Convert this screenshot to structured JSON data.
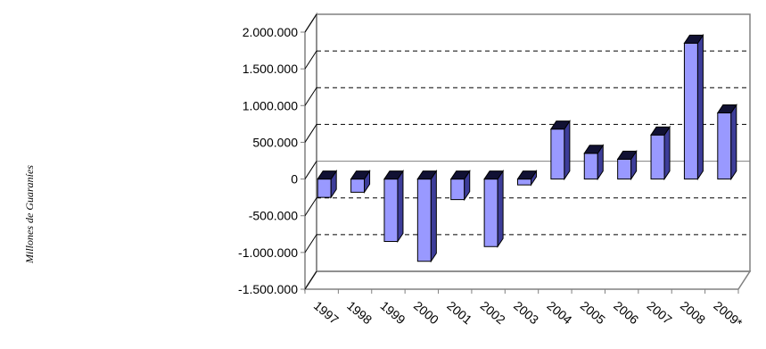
{
  "chart_data": {
    "type": "bar",
    "title": "",
    "xlabel": "",
    "ylabel": "Millones de Guaraníes",
    "ylim": [
      -1500000,
      2000000
    ],
    "ytick_values": [
      2000000,
      1500000,
      1000000,
      500000,
      0,
      -500000,
      -1000000,
      -1500000
    ],
    "ytick_labels": [
      "2.000.000",
      "1.500.000",
      "1.000.000",
      "500.000",
      "0",
      "-500.000",
      "-1.000.000",
      "-1.500.000"
    ],
    "categories": [
      "1997",
      "1998",
      "1999",
      "2000",
      "2001",
      "2002",
      "2003",
      "2004",
      "2005",
      "2006",
      "2007",
      "2008",
      "2009*"
    ],
    "values": [
      -250000,
      -180000,
      -850000,
      -1120000,
      -280000,
      -920000,
      -80000,
      680000,
      350000,
      270000,
      600000,
      1850000,
      900000
    ],
    "grid": true,
    "legend": "none",
    "colors": {
      "bar_front": "#9999ff",
      "bar_side": "#3d3d99",
      "bar_top": "#111133",
      "frame": "#808080",
      "gridline": "#000000"
    }
  }
}
